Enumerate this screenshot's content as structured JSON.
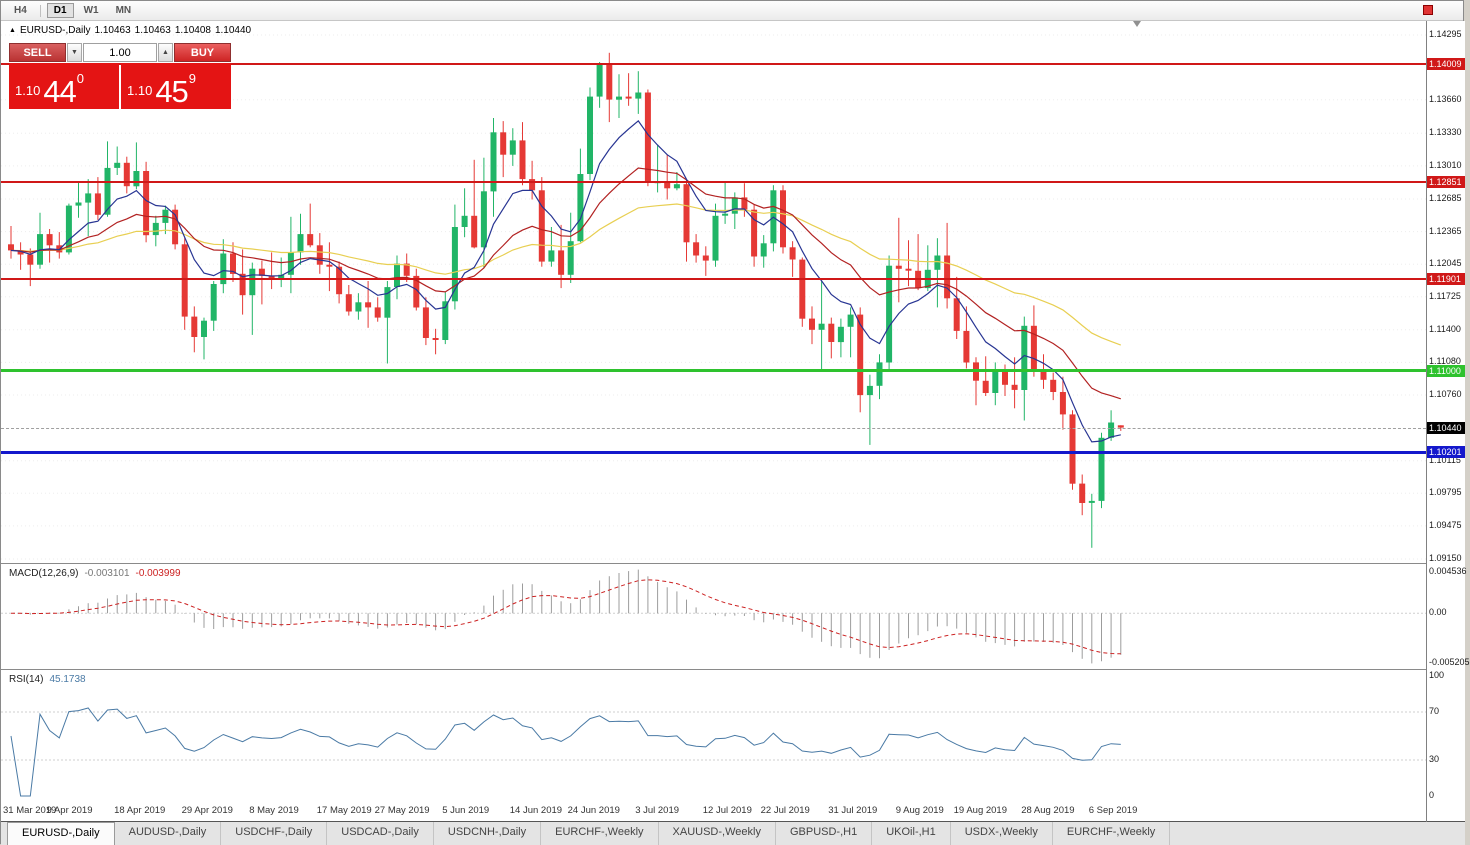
{
  "toolbar": {
    "periods": [
      {
        "label": "H4",
        "active": false
      },
      {
        "label": "D1",
        "active": true
      },
      {
        "label": "W1",
        "active": false
      },
      {
        "label": "MN",
        "active": false
      }
    ]
  },
  "chart": {
    "title": {
      "symbol_period": "EURUSD-,Daily",
      "open": "1.10463",
      "high": "1.10463",
      "low": "1.10408",
      "close": "1.10440"
    },
    "trade_panel": {
      "sell_label": "SELL",
      "buy_label": "BUY",
      "volume": "1.00",
      "sell_price": {
        "small": "1.10",
        "big": "44",
        "sup": "0"
      },
      "buy_price": {
        "small": "1.10",
        "big": "45",
        "sup": "9"
      }
    },
    "colors": {
      "up": "#21b567",
      "down": "#e53935",
      "ma_fast": "#283593",
      "ma_mid": "#b22222",
      "ma_slow": "#e8cf52",
      "grid": "#ededed"
    },
    "price_axis": {
      "ticks": [
        "1.14295",
        "1.13660",
        "1.13330",
        "1.13010",
        "1.12685",
        "1.12365",
        "1.12045",
        "1.11725",
        "1.11400",
        "1.11080",
        "1.10760",
        "1.10115",
        "1.09795",
        "1.09475",
        "1.09150"
      ],
      "levels": [
        {
          "label": "1.14009",
          "value": 1.14009,
          "color": "#d01818",
          "thickness": 2,
          "name": "resistance-line-1-14009"
        },
        {
          "label": "1.12851",
          "value": 1.12851,
          "color": "#d01818",
          "thickness": 2,
          "name": "resistance-line-1-12851"
        },
        {
          "label": "1.11901",
          "value": 1.11901,
          "color": "#d01818",
          "thickness": 2,
          "name": "resistance-line-1-11901"
        },
        {
          "label": "1.11000",
          "value": 1.11,
          "color": "#2ec22e",
          "thickness": 3,
          "name": "support-line-green-1-11000"
        },
        {
          "label": "1.10201",
          "value": 1.10201,
          "color": "#1418cc",
          "thickness": 3,
          "name": "support-line-blue-1-10201"
        }
      ],
      "current": {
        "label": "1.10440",
        "value": 1.1044
      }
    },
    "date_ticks": [
      {
        "label": "31 Mar 2019",
        "i": 0
      },
      {
        "label": "9 Apr 2019",
        "i": 7
      },
      {
        "label": "18 Apr 2019",
        "i": 14
      },
      {
        "label": "29 Apr 2019",
        "i": 21
      },
      {
        "label": "8 May 2019",
        "i": 28
      },
      {
        "label": "17 May 2019",
        "i": 35
      },
      {
        "label": "27 May 2019",
        "i": 41
      },
      {
        "label": "5 Jun 2019",
        "i": 48
      },
      {
        "label": "14 Jun 2019",
        "i": 55
      },
      {
        "label": "24 Jun 2019",
        "i": 61
      },
      {
        "label": "3 Jul 2019",
        "i": 68
      },
      {
        "label": "12 Jul 2019",
        "i": 75
      },
      {
        "label": "22 Jul 2019",
        "i": 81
      },
      {
        "label": "31 Jul 2019",
        "i": 88
      },
      {
        "label": "9 Aug 2019",
        "i": 95
      },
      {
        "label": "19 Aug 2019",
        "i": 101
      },
      {
        "label": "28 Aug 2019",
        "i": 108
      },
      {
        "label": "6 Sep 2019",
        "i": 115
      }
    ],
    "candles": [
      [
        1.1224,
        1.1242,
        1.121,
        1.1218
      ],
      [
        1.1218,
        1.1226,
        1.1199,
        1.1214
      ],
      [
        1.1214,
        1.122,
        1.1183,
        1.1204
      ],
      [
        1.1204,
        1.1255,
        1.12,
        1.1234
      ],
      [
        1.1234,
        1.1239,
        1.1206,
        1.1223
      ],
      [
        1.1223,
        1.1236,
        1.121,
        1.1216
      ],
      [
        1.1216,
        1.1264,
        1.1214,
        1.1262
      ],
      [
        1.1262,
        1.1285,
        1.125,
        1.1265
      ],
      [
        1.1265,
        1.1288,
        1.1232,
        1.1274
      ],
      [
        1.1274,
        1.129,
        1.1248,
        1.1253
      ],
      [
        1.1253,
        1.1325,
        1.1251,
        1.1299
      ],
      [
        1.1299,
        1.132,
        1.1292,
        1.1304
      ],
      [
        1.1304,
        1.131,
        1.1274,
        1.1281
      ],
      [
        1.1281,
        1.1324,
        1.1278,
        1.1296
      ],
      [
        1.1296,
        1.1305,
        1.1226,
        1.1233
      ],
      [
        1.1233,
        1.1252,
        1.1222,
        1.1245
      ],
      [
        1.1245,
        1.1262,
        1.1234,
        1.1258
      ],
      [
        1.1258,
        1.1263,
        1.1219,
        1.1224
      ],
      [
        1.1224,
        1.123,
        1.114,
        1.1153
      ],
      [
        1.1153,
        1.1163,
        1.1118,
        1.1133
      ],
      [
        1.1133,
        1.1152,
        1.1111,
        1.1149
      ],
      [
        1.1149,
        1.1188,
        1.1139,
        1.1185
      ],
      [
        1.1185,
        1.1229,
        1.1176,
        1.1215
      ],
      [
        1.1215,
        1.1226,
        1.1187,
        1.1195
      ],
      [
        1.1195,
        1.1219,
        1.1155,
        1.1174
      ],
      [
        1.1174,
        1.1206,
        1.1135,
        1.12
      ],
      [
        1.12,
        1.1208,
        1.1165,
        1.1193
      ],
      [
        1.1193,
        1.1216,
        1.118,
        1.119
      ],
      [
        1.119,
        1.1211,
        1.1182,
        1.1194
      ],
      [
        1.1194,
        1.1251,
        1.1176,
        1.1216
      ],
      [
        1.1216,
        1.1254,
        1.1204,
        1.1234
      ],
      [
        1.1234,
        1.1264,
        1.1221,
        1.1223
      ],
      [
        1.1223,
        1.1235,
        1.1195,
        1.1204
      ],
      [
        1.1204,
        1.1226,
        1.1178,
        1.1202
      ],
      [
        1.1202,
        1.1207,
        1.1166,
        1.1175
      ],
      [
        1.1175,
        1.1184,
        1.1154,
        1.1158
      ],
      [
        1.1158,
        1.1176,
        1.115,
        1.1167
      ],
      [
        1.1167,
        1.1188,
        1.1142,
        1.1162
      ],
      [
        1.1162,
        1.1172,
        1.1148,
        1.1152
      ],
      [
        1.1152,
        1.1188,
        1.1107,
        1.1182
      ],
      [
        1.1182,
        1.1213,
        1.117,
        1.1205
      ],
      [
        1.1205,
        1.1215,
        1.1187,
        1.1193
      ],
      [
        1.1193,
        1.12,
        1.1159,
        1.1162
      ],
      [
        1.1162,
        1.1172,
        1.1125,
        1.1132
      ],
      [
        1.1132,
        1.1141,
        1.1116,
        1.113
      ],
      [
        1.113,
        1.1177,
        1.1126,
        1.1168
      ],
      [
        1.1168,
        1.1263,
        1.116,
        1.1241
      ],
      [
        1.1241,
        1.1279,
        1.1231,
        1.1252
      ],
      [
        1.1252,
        1.1307,
        1.122,
        1.1221
      ],
      [
        1.1221,
        1.1309,
        1.1201,
        1.1276
      ],
      [
        1.1276,
        1.1348,
        1.1251,
        1.1334
      ],
      [
        1.1334,
        1.1345,
        1.129,
        1.1312
      ],
      [
        1.1312,
        1.1338,
        1.1301,
        1.1326
      ],
      [
        1.1326,
        1.1344,
        1.1282,
        1.1288
      ],
      [
        1.1288,
        1.1306,
        1.1268,
        1.1277
      ],
      [
        1.1277,
        1.129,
        1.1202,
        1.1207
      ],
      [
        1.1207,
        1.1241,
        1.1202,
        1.1218
      ],
      [
        1.1218,
        1.1243,
        1.1181,
        1.1194
      ],
      [
        1.1194,
        1.1255,
        1.1186,
        1.1227
      ],
      [
        1.1227,
        1.1318,
        1.1226,
        1.1293
      ],
      [
        1.1293,
        1.1378,
        1.1287,
        1.1369
      ],
      [
        1.1369,
        1.1403,
        1.1358,
        1.14
      ],
      [
        1.14,
        1.1412,
        1.1344,
        1.1366
      ],
      [
        1.1366,
        1.1391,
        1.1348,
        1.1369
      ],
      [
        1.1369,
        1.1392,
        1.136,
        1.1367
      ],
      [
        1.1367,
        1.1394,
        1.1352,
        1.1373
      ],
      [
        1.1373,
        1.1376,
        1.1281,
        1.1285
      ],
      [
        1.1285,
        1.1322,
        1.1275,
        1.1285
      ],
      [
        1.1285,
        1.1312,
        1.1268,
        1.1279
      ],
      [
        1.1279,
        1.1295,
        1.1277,
        1.1283
      ],
      [
        1.1283,
        1.1288,
        1.1207,
        1.1226
      ],
      [
        1.1226,
        1.1234,
        1.1206,
        1.1213
      ],
      [
        1.1213,
        1.1222,
        1.1193,
        1.1208
      ],
      [
        1.1208,
        1.1264,
        1.1202,
        1.1252
      ],
      [
        1.1252,
        1.1286,
        1.1244,
        1.1254
      ],
      [
        1.1254,
        1.1275,
        1.1239,
        1.127
      ],
      [
        1.127,
        1.1284,
        1.1251,
        1.1258
      ],
      [
        1.1258,
        1.1263,
        1.1202,
        1.1212
      ],
      [
        1.1212,
        1.1233,
        1.1201,
        1.1225
      ],
      [
        1.1225,
        1.1282,
        1.1217,
        1.1277
      ],
      [
        1.1277,
        1.1282,
        1.1215,
        1.1221
      ],
      [
        1.1221,
        1.1227,
        1.1192,
        1.1209
      ],
      [
        1.1209,
        1.1211,
        1.1143,
        1.1151
      ],
      [
        1.1151,
        1.1163,
        1.1126,
        1.114
      ],
      [
        1.114,
        1.1188,
        1.1101,
        1.1146
      ],
      [
        1.1146,
        1.1152,
        1.1112,
        1.1128
      ],
      [
        1.1128,
        1.1151,
        1.1113,
        1.1143
      ],
      [
        1.1143,
        1.1162,
        1.1113,
        1.1155
      ],
      [
        1.1155,
        1.1162,
        1.1059,
        1.1076
      ],
      [
        1.1076,
        1.1096,
        1.1027,
        1.1085
      ],
      [
        1.1085,
        1.1116,
        1.1072,
        1.1108
      ],
      [
        1.1108,
        1.1213,
        1.1101,
        1.1203
      ],
      [
        1.1203,
        1.125,
        1.1167,
        1.12
      ],
      [
        1.12,
        1.1228,
        1.1183,
        1.1198
      ],
      [
        1.1198,
        1.1234,
        1.1179,
        1.1181
      ],
      [
        1.1181,
        1.1223,
        1.1178,
        1.1199
      ],
      [
        1.1199,
        1.123,
        1.1162,
        1.1213
      ],
      [
        1.1213,
        1.1245,
        1.1161,
        1.1171
      ],
      [
        1.1171,
        1.1192,
        1.1131,
        1.1139
      ],
      [
        1.1139,
        1.1163,
        1.1102,
        1.1108
      ],
      [
        1.1108,
        1.1113,
        1.1066,
        1.109
      ],
      [
        1.109,
        1.1114,
        1.1075,
        1.1078
      ],
      [
        1.1078,
        1.1108,
        1.1066,
        1.1099
      ],
      [
        1.1099,
        1.1106,
        1.1075,
        1.1086
      ],
      [
        1.1086,
        1.1113,
        1.1063,
        1.1081
      ],
      [
        1.1081,
        1.1153,
        1.1051,
        1.1144
      ],
      [
        1.1144,
        1.1164,
        1.1094,
        1.1101
      ],
      [
        1.1101,
        1.1116,
        1.1082,
        1.1091
      ],
      [
        1.1091,
        1.1098,
        1.1071,
        1.1079
      ],
      [
        1.1079,
        1.1094,
        1.1042,
        1.1057
      ],
      [
        1.1057,
        1.1061,
        1.0983,
        1.0989
      ],
      [
        1.0989,
        1.0998,
        1.0958,
        1.097
      ],
      [
        1.097,
        1.0979,
        1.0926,
        1.0972
      ],
      [
        1.0972,
        1.1039,
        1.0965,
        1.1034
      ],
      [
        1.1034,
        1.1061,
        1.1031,
        1.1049
      ],
      [
        1.10463,
        1.10463,
        1.10408,
        1.1044
      ]
    ]
  },
  "macd": {
    "label": "MACD(12,26,9)",
    "value1": "-0.003101",
    "value2": "-0.003999",
    "axis": {
      "top": "0.004536",
      "zero": "0.00",
      "bottom": "-0.005205"
    }
  },
  "rsi": {
    "label": "RSI(14)",
    "value": "45.1738",
    "axis": [
      "100",
      "70",
      "30",
      "0"
    ],
    "levels": [
      70,
      30
    ]
  },
  "tabs": [
    {
      "label": "EURUSD-,Daily",
      "active": true
    },
    {
      "label": "AUDUSD-,Daily",
      "active": false
    },
    {
      "label": "USDCHF-,Daily",
      "active": false
    },
    {
      "label": "USDCAD-,Daily",
      "active": false
    },
    {
      "label": "USDCNH-,Daily",
      "active": false
    },
    {
      "label": "EURCHF-,Weekly",
      "active": false
    },
    {
      "label": "XAUUSD-,Weekly",
      "active": false
    },
    {
      "label": "GBPUSD-,H1",
      "active": false
    },
    {
      "label": "UKOil-,H1",
      "active": false
    },
    {
      "label": "USDX-,Weekly",
      "active": false
    },
    {
      "label": "EURCHF-,Weekly",
      "active": false
    }
  ]
}
